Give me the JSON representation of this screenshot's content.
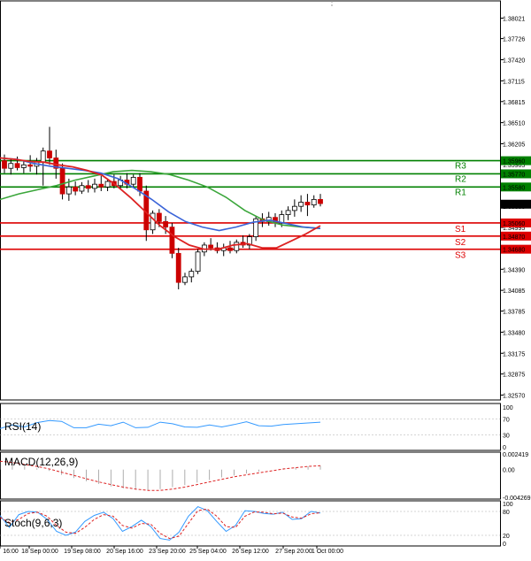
{
  "chart_data": {
    "type": "candlestick",
    "main": {
      "ylim": [
        1.325,
        1.3822
      ],
      "y_ticks": [
        "1.38021",
        "1.37726",
        "1.37420",
        "1.37115",
        "1.36815",
        "1.36510",
        "1.36205",
        "1.35905",
        "1.35600",
        "1.35300",
        "1.34995",
        "1.34690",
        "1.34390",
        "1.34085",
        "1.33785",
        "1.33480",
        "1.33175",
        "1.32875",
        "1.32570"
      ],
      "x_ticks": [
        "16:00",
        "18 Sep 00:00",
        "19 Sep 08:00",
        "20 Sep 16:00",
        "23 Sep 20:00",
        "25 Sep 04:00",
        "26 Sep 12:00",
        "27 Sep 20:00",
        "1 Oct 00:00"
      ],
      "price_label": "1.35331",
      "price_value": 1.35331,
      "levels": [
        {
          "name": "R3",
          "value": 1.3596,
          "label": "1.35960",
          "color": "#008000"
        },
        {
          "name": "R2",
          "value": 1.3577,
          "label": "1.35770",
          "color": "#008000"
        },
        {
          "name": "R1",
          "value": 1.3558,
          "label": "1.35580",
          "color": "#008000"
        },
        {
          "name": "S1",
          "value": 1.3506,
          "label": "1.35060",
          "color": "#dd0000"
        },
        {
          "name": "S2",
          "value": 1.3487,
          "label": "1.34870",
          "color": "#dd0000"
        },
        {
          "name": "S3",
          "value": 1.3468,
          "label": "1.34680",
          "color": "#dd0000"
        }
      ],
      "candles": [
        [
          1.3596,
          1.3605,
          1.3578,
          1.3585
        ],
        [
          1.3585,
          1.3598,
          1.3576,
          1.3592
        ],
        [
          1.3592,
          1.3602,
          1.3582,
          1.3586
        ],
        [
          1.3586,
          1.3596,
          1.3578,
          1.359
        ],
        [
          1.359,
          1.3604,
          1.358,
          1.3588
        ],
        [
          1.3588,
          1.36,
          1.3576,
          1.3594
        ],
        [
          1.3594,
          1.3615,
          1.356,
          1.361
        ],
        [
          1.361,
          1.3645,
          1.359,
          1.36
        ],
        [
          1.36,
          1.3612,
          1.357,
          1.3585
        ],
        [
          1.3585,
          1.3592,
          1.354,
          1.3548
        ],
        [
          1.3548,
          1.357,
          1.3538,
          1.3558
        ],
        [
          1.3558,
          1.3566,
          1.3546,
          1.3552
        ],
        [
          1.3552,
          1.3565,
          1.3548,
          1.356
        ],
        [
          1.356,
          1.3568,
          1.355,
          1.3556
        ],
        [
          1.3556,
          1.357,
          1.355,
          1.3562
        ],
        [
          1.3562,
          1.3574,
          1.3552,
          1.3558
        ],
        [
          1.3558,
          1.357,
          1.3552,
          1.3566
        ],
        [
          1.3566,
          1.3576,
          1.3556,
          1.356
        ],
        [
          1.356,
          1.3574,
          1.3554,
          1.3568
        ],
        [
          1.3568,
          1.3578,
          1.3556,
          1.3562
        ],
        [
          1.3562,
          1.3576,
          1.3558,
          1.3572
        ],
        [
          1.3572,
          1.3578,
          1.3545,
          1.3552
        ],
        [
          1.3552,
          1.356,
          1.348,
          1.3496
        ],
        [
          1.3496,
          1.3524,
          1.349,
          1.352
        ],
        [
          1.352,
          1.3526,
          1.35,
          1.3508
        ],
        [
          1.3508,
          1.3516,
          1.349,
          1.35
        ],
        [
          1.35,
          1.3506,
          1.3455,
          1.3462
        ],
        [
          1.3462,
          1.347,
          1.341,
          1.342
        ],
        [
          1.342,
          1.3434,
          1.3416,
          1.3428
        ],
        [
          1.3428,
          1.344,
          1.342,
          1.3436
        ],
        [
          1.3436,
          1.3468,
          1.3432,
          1.3464
        ],
        [
          1.3464,
          1.3478,
          1.3458,
          1.3474
        ],
        [
          1.3474,
          1.3484,
          1.3466,
          1.347
        ],
        [
          1.347,
          1.3478,
          1.3462,
          1.3466
        ],
        [
          1.3466,
          1.3476,
          1.3458,
          1.347
        ],
        [
          1.347,
          1.348,
          1.3462,
          1.3466
        ],
        [
          1.3466,
          1.3482,
          1.3462,
          1.3478
        ],
        [
          1.3478,
          1.3488,
          1.347,
          1.3474
        ],
        [
          1.3474,
          1.349,
          1.3468,
          1.3486
        ],
        [
          1.3486,
          1.3516,
          1.348,
          1.3512
        ],
        [
          1.3512,
          1.352,
          1.35,
          1.3508
        ],
        [
          1.3508,
          1.3522,
          1.3502,
          1.3514
        ],
        [
          1.3514,
          1.352,
          1.35,
          1.3506
        ],
        [
          1.3506,
          1.3524,
          1.35,
          1.3518
        ],
        [
          1.3518,
          1.353,
          1.351,
          1.3524
        ],
        [
          1.3524,
          1.354,
          1.3515,
          1.353
        ],
        [
          1.353,
          1.3546,
          1.3522,
          1.3536
        ],
        [
          1.3536,
          1.3548,
          1.3516,
          1.3532
        ],
        [
          1.3532,
          1.3546,
          1.3528,
          1.354
        ],
        [
          1.354,
          1.3548,
          1.353,
          1.3534
        ]
      ],
      "ma_slow": [
        1.354,
        1.3548,
        1.3554,
        1.356,
        1.3568,
        1.3574,
        1.358,
        1.3582,
        1.358,
        1.3576,
        1.3568,
        1.3558,
        1.3543,
        1.3524,
        1.351,
        1.3503,
        1.35,
        1.3498
      ],
      "ma_mid": [
        1.36,
        1.3598,
        1.3592,
        1.3588,
        1.3585,
        1.3582,
        1.3578,
        1.357,
        1.3556,
        1.354,
        1.3522,
        1.3508,
        1.35,
        1.3495,
        1.35,
        1.3507,
        1.351,
        1.3505,
        1.35,
        1.3498
      ],
      "ma_fast": [
        1.36,
        1.3598,
        1.3595,
        1.3594,
        1.359,
        1.3587,
        1.3582,
        1.3575,
        1.356,
        1.3542,
        1.3522,
        1.3502,
        1.3486,
        1.3474,
        1.3468,
        1.3468,
        1.3474,
        1.3476,
        1.347,
        1.347,
        1.348,
        1.349,
        1.3502
      ]
    },
    "rsi": {
      "title": "RSI(14)",
      "ticks": [
        "100",
        "70",
        "30",
        "0"
      ],
      "values": [
        46,
        55,
        50,
        61,
        66,
        64,
        48,
        48,
        57,
        53,
        62,
        48,
        49,
        62,
        58,
        50,
        49,
        55,
        50,
        56,
        63,
        53,
        52,
        56,
        58,
        60,
        62
      ]
    },
    "macd": {
      "title": "MACD(12,26,9)",
      "ticks": [
        "0.002419",
        "0.00",
        "-0.004269"
      ],
      "values": [
        0.0012,
        0.0009,
        0.0006,
        0.0002,
        -0.0002,
        -0.0008,
        -0.0013,
        -0.0018,
        -0.0022,
        -0.0026,
        -0.0029,
        -0.0031,
        -0.0032,
        -0.003,
        -0.0027,
        -0.0024,
        -0.002,
        -0.0016,
        -0.0012,
        -0.0009,
        -0.0006,
        -0.0003,
        0.0,
        0.0002,
        0.0003,
        0.0005,
        0.0006
      ],
      "signal": [
        0.0013,
        0.0011,
        0.0008,
        0.0005,
        0.0001,
        -0.0004,
        -0.0009,
        -0.0014,
        -0.0019,
        -0.0023,
        -0.0027,
        -0.003,
        -0.0032,
        -0.0032,
        -0.003,
        -0.0027,
        -0.0023,
        -0.0019,
        -0.0015,
        -0.0011,
        -0.0008,
        -0.0005,
        -0.0002,
        0.0001,
        0.0003,
        0.0005,
        0.0006
      ]
    },
    "stoch": {
      "title": "Stoch(9,6,3)",
      "ticks": [
        "100",
        "80",
        "20",
        "0"
      ],
      "k": [
        70,
        40,
        72,
        80,
        78,
        60,
        30,
        20,
        28,
        55,
        70,
        78,
        62,
        30,
        42,
        58,
        42,
        12,
        8,
        28,
        68,
        92,
        82,
        55,
        30,
        45,
        82,
        80,
        75,
        73,
        78,
        60,
        62,
        80,
        76
      ],
      "d": [
        65,
        52,
        60,
        75,
        78,
        68,
        45,
        28,
        25,
        40,
        60,
        72,
        68,
        45,
        38,
        50,
        48,
        25,
        12,
        18,
        50,
        82,
        86,
        68,
        42,
        40,
        68,
        79,
        78,
        74,
        76,
        66,
        63,
        74,
        77
      ]
    }
  }
}
